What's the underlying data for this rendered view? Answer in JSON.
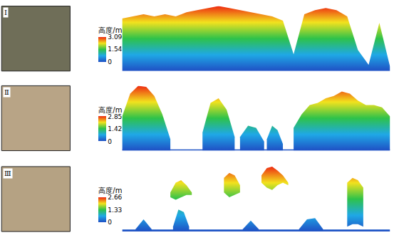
{
  "chart_data": [
    {
      "type": "area",
      "label": "Ⅰ",
      "colorbar_title": "高度/m",
      "clim": [
        0,
        3.09
      ],
      "cticks": [
        0,
        1.54,
        3.09
      ],
      "xlim": [
        0,
        100
      ],
      "ylim": [
        0,
        3.09
      ],
      "tick_labels": false,
      "objects": [
        {
          "x": [
            0,
            4,
            8,
            12,
            16,
            20,
            24,
            28,
            32,
            36,
            40,
            44,
            48,
            52,
            56,
            60,
            64,
            68,
            72,
            76,
            80,
            84,
            88,
            92,
            96,
            100
          ],
          "top": [
            2.5,
            2.6,
            2.7,
            2.6,
            2.7,
            2.6,
            2.8,
            2.9,
            3.0,
            3.09,
            3.0,
            2.9,
            2.8,
            2.7,
            2.6,
            2.4,
            0.8,
            2.7,
            2.9,
            3.0,
            2.9,
            2.6,
            1.0,
            0.3,
            2.3,
            0.2
          ],
          "base": [
            0,
            0,
            0,
            0,
            0,
            0,
            0,
            0,
            0,
            0,
            0,
            0,
            0,
            0,
            0,
            0,
            0,
            0,
            0,
            0,
            0,
            0,
            0,
            0,
            0,
            0
          ]
        }
      ]
    },
    {
      "type": "area",
      "label": "Ⅱ",
      "colorbar_title": "高度/m",
      "clim": [
        0,
        2.85
      ],
      "cticks": [
        0,
        1.42,
        2.85
      ],
      "xlim": [
        0,
        100
      ],
      "ylim": [
        0,
        2.85
      ],
      "tick_labels": false,
      "objects": [
        {
          "x": [
            0,
            100
          ],
          "top": [
            0.06,
            0.06
          ],
          "base": [
            0,
            0
          ]
        },
        {
          "x": [
            0,
            3,
            6,
            9,
            12,
            15,
            18
          ],
          "top": [
            1.5,
            2.5,
            2.85,
            2.8,
            2.4,
            1.6,
            0.5
          ],
          "base": [
            0,
            0,
            0,
            0,
            0,
            0,
            0
          ]
        },
        {
          "x": [
            30,
            33,
            36,
            39,
            42
          ],
          "top": [
            0.8,
            2.1,
            2.3,
            1.8,
            0.6
          ],
          "base": [
            0,
            0,
            0,
            0,
            0
          ]
        },
        {
          "x": [
            44,
            47,
            50,
            53
          ],
          "top": [
            0.6,
            1.1,
            1.0,
            0.4
          ],
          "base": [
            0,
            0,
            0,
            0
          ]
        },
        {
          "x": [
            54,
            56,
            58,
            60
          ],
          "top": [
            0.5,
            1.1,
            0.9,
            0.3
          ],
          "base": [
            0,
            0,
            0,
            0
          ]
        },
        {
          "x": [
            64,
            67,
            70,
            73,
            76,
            79,
            82,
            85,
            88,
            91,
            94,
            97,
            100
          ],
          "top": [
            1.0,
            1.6,
            2.0,
            2.1,
            2.3,
            2.4,
            2.6,
            2.5,
            2.2,
            2.0,
            2.0,
            1.9,
            1.5
          ],
          "base": [
            0,
            0,
            0,
            0,
            0,
            0,
            0,
            0,
            0,
            0,
            0,
            0,
            0
          ]
        }
      ]
    },
    {
      "type": "area",
      "label": "Ⅲ",
      "colorbar_title": "高度/m",
      "clim": [
        0,
        2.66
      ],
      "cticks": [
        0,
        1.33,
        2.66
      ],
      "xlim": [
        0,
        100
      ],
      "ylim": [
        0,
        2.66
      ],
      "tick_labels": false,
      "objects": [
        {
          "x": [
            0,
            100
          ],
          "top": [
            0.08,
            0.08
          ],
          "base": [
            0,
            0
          ]
        },
        {
          "x": [
            5,
            8,
            11
          ],
          "top": [
            0.1,
            0.5,
            0.1
          ],
          "base": [
            0,
            0,
            0
          ]
        },
        {
          "x": [
            19,
            21,
            23,
            25
          ],
          "top": [
            0.2,
            0.9,
            0.8,
            0.2
          ],
          "base": [
            0,
            0,
            0,
            0
          ]
        },
        {
          "x": [
            45,
            48,
            51
          ],
          "top": [
            0.1,
            0.45,
            0.1
          ],
          "base": [
            0,
            0,
            0
          ]
        },
        {
          "x": [
            66,
            69,
            72,
            75
          ],
          "top": [
            0.1,
            0.5,
            0.55,
            0.1
          ],
          "base": [
            0,
            0,
            0,
            0
          ]
        },
        {
          "x": [
            18,
            20,
            22,
            24,
            26
          ],
          "top": [
            1.6,
            2.0,
            2.1,
            1.9,
            1.6
          ],
          "base": [
            1.4,
            1.3,
            1.4,
            1.5,
            1.5
          ]
        },
        {
          "x": [
            38,
            40,
            42,
            44
          ],
          "top": [
            2.2,
            2.4,
            2.3,
            1.9
          ],
          "base": [
            1.6,
            1.4,
            1.5,
            1.6
          ]
        },
        {
          "x": [
            52,
            54,
            56,
            58,
            60,
            62
          ],
          "top": [
            2.3,
            2.6,
            2.66,
            2.5,
            2.3,
            2.0
          ],
          "base": [
            2.0,
            1.8,
            1.7,
            1.9,
            2.0,
            1.9
          ]
        },
        {
          "x": [
            84,
            86,
            88,
            90
          ],
          "top": [
            2.0,
            2.2,
            2.1,
            1.8
          ],
          "base": [
            0.2,
            0.3,
            0.3,
            0.2
          ]
        }
      ]
    }
  ]
}
